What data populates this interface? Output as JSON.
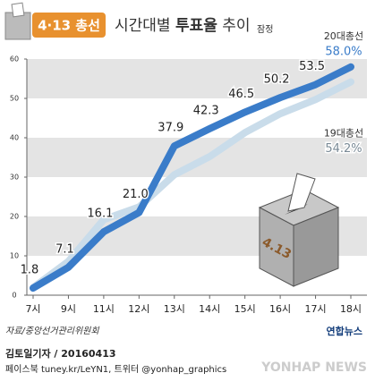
{
  "chart_data": {
    "type": "line",
    "badge": "4·13 총선",
    "title_parts": [
      "시간대별",
      "투표율",
      "추이"
    ],
    "note": "잠정",
    "categories": [
      "7시",
      "9시",
      "11시",
      "12시",
      "13시",
      "14시",
      "15시",
      "16시",
      "17시",
      "18시"
    ],
    "series": [
      {
        "name": "19대총선",
        "color": "#c9dcea",
        "label_color": "#7a8a96",
        "values": [
          1.9,
          8.6,
          19.2,
          22.4,
          30.6,
          35.2,
          41.3,
          46.1,
          49.7,
          54.2
        ],
        "value_labels": [
          null,
          null,
          null,
          null,
          null,
          null,
          null,
          null,
          null,
          "54.2%"
        ]
      },
      {
        "name": "20대총선",
        "color": "#3a7cc9",
        "label_color": "#222222",
        "values": [
          1.8,
          7.1,
          16.1,
          21.0,
          37.9,
          42.3,
          46.5,
          50.2,
          53.5,
          58.0
        ],
        "value_labels": [
          "1.8",
          "7.1",
          "16.1",
          "21.0",
          "37.9",
          "42.3",
          "46.5",
          "50.2",
          "53.5",
          "58.0%"
        ]
      }
    ],
    "ylim": [
      0,
      60
    ],
    "yticks": [
      0,
      10,
      20,
      30,
      40,
      50,
      60
    ],
    "grid": "bands",
    "box_label": "4.13",
    "source": "자료/중앙선거관리위원회",
    "logo": "연합뉴스",
    "credit": "김토일기자 / 20160413",
    "social": "페이스북 tuney.kr/LeYN1, 트위터 @yonhap_graphics",
    "watermark": "YONHAP NEWS"
  }
}
